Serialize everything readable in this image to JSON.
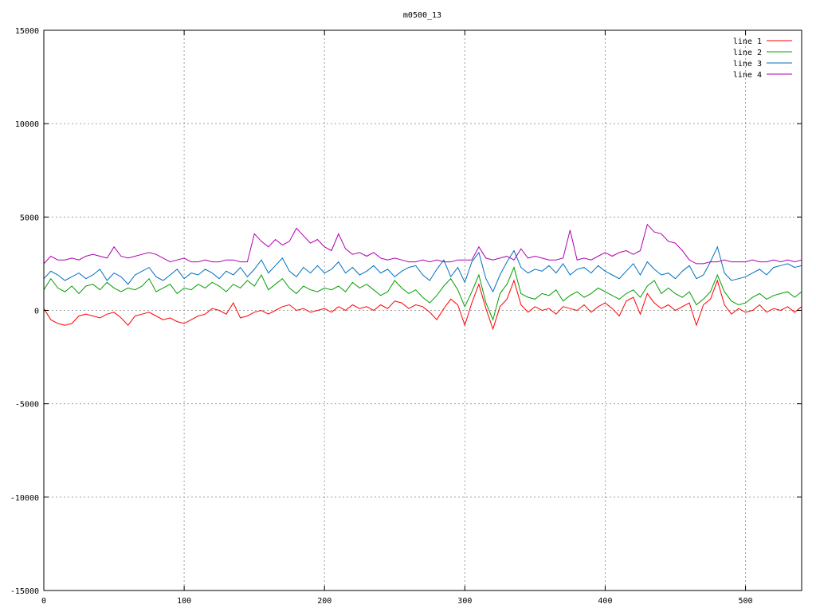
{
  "chart_data": {
    "type": "line",
    "title": "m0500_13",
    "xlabel": "",
    "ylabel": "",
    "xlim": [
      0,
      540
    ],
    "ylim": [
      -15000,
      15000
    ],
    "x_ticks": [
      0,
      100,
      200,
      300,
      400,
      500
    ],
    "x_tick_labels": [
      "0",
      "100",
      "200",
      "300",
      "400",
      "500"
    ],
    "y_ticks": [
      -15000,
      -10000,
      -5000,
      0,
      5000,
      10000,
      15000
    ],
    "y_tick_labels": [
      "-15000",
      "-10000",
      "-5000",
      "0",
      "5000",
      "10000",
      "15000"
    ],
    "grid": true,
    "legend_position": "top-right",
    "x": [
      0,
      5,
      10,
      15,
      20,
      25,
      30,
      35,
      40,
      45,
      50,
      55,
      60,
      65,
      70,
      75,
      80,
      85,
      90,
      95,
      100,
      105,
      110,
      115,
      120,
      125,
      130,
      135,
      140,
      145,
      150,
      155,
      160,
      165,
      170,
      175,
      180,
      185,
      190,
      195,
      200,
      205,
      210,
      215,
      220,
      225,
      230,
      235,
      240,
      245,
      250,
      255,
      260,
      265,
      270,
      275,
      280,
      285,
      290,
      295,
      300,
      305,
      310,
      315,
      320,
      325,
      330,
      335,
      340,
      345,
      350,
      355,
      360,
      365,
      370,
      375,
      380,
      385,
      390,
      395,
      400,
      405,
      410,
      415,
      420,
      425,
      430,
      435,
      440,
      445,
      450,
      455,
      460,
      465,
      470,
      475,
      480,
      485,
      490,
      495,
      500,
      505,
      510,
      515,
      520,
      525,
      530,
      535,
      540
    ],
    "series": [
      {
        "name": "line 1",
        "color": "#ff0000",
        "values": [
          100,
          -500,
          -700,
          -800,
          -700,
          -300,
          -200,
          -300,
          -400,
          -200,
          -100,
          -400,
          -800,
          -300,
          -200,
          -100,
          -300,
          -500,
          -400,
          -600,
          -700,
          -500,
          -300,
          -200,
          100,
          0,
          -200,
          400,
          -400,
          -300,
          -100,
          0,
          -200,
          0,
          200,
          300,
          0,
          100,
          -100,
          0,
          100,
          -100,
          200,
          0,
          300,
          100,
          200,
          0,
          300,
          100,
          500,
          400,
          100,
          300,
          200,
          -100,
          -500,
          100,
          600,
          300,
          -800,
          400,
          1400,
          100,
          -1000,
          200,
          600,
          1600,
          300,
          -100,
          200,
          0,
          100,
          -200,
          200,
          100,
          0,
          300,
          -100,
          200,
          400,
          100,
          -300,
          500,
          700,
          -200,
          900,
          400,
          100,
          300,
          0,
          200,
          400,
          -800,
          300,
          600,
          1600,
          300,
          -200,
          100,
          -100,
          0,
          300,
          -100,
          100,
          0,
          200,
          -100,
          200
        ]
      },
      {
        "name": "line 2",
        "color": "#00a000",
        "values": [
          1100,
          1700,
          1200,
          1000,
          1300,
          900,
          1300,
          1400,
          1100,
          1500,
          1200,
          1000,
          1200,
          1100,
          1300,
          1700,
          1000,
          1200,
          1400,
          900,
          1200,
          1100,
          1400,
          1200,
          1500,
          1300,
          1000,
          1400,
          1200,
          1600,
          1300,
          1900,
          1100,
          1400,
          1700,
          1200,
          900,
          1300,
          1100,
          1000,
          1200,
          1100,
          1300,
          1000,
          1500,
          1200,
          1400,
          1100,
          800,
          1000,
          1600,
          1200,
          900,
          1100,
          700,
          400,
          800,
          1300,
          1700,
          1100,
          200,
          1000,
          1900,
          400,
          -500,
          900,
          1400,
          2300,
          900,
          700,
          600,
          900,
          800,
          1100,
          500,
          800,
          1000,
          700,
          900,
          1200,
          1000,
          800,
          600,
          900,
          1100,
          700,
          1300,
          1600,
          900,
          1200,
          900,
          700,
          1000,
          300,
          600,
          1000,
          1900,
          1000,
          500,
          300,
          400,
          700,
          900,
          600,
          800,
          900,
          1000,
          700,
          1000
        ]
      },
      {
        "name": "line 3",
        "color": "#0070c0",
        "values": [
          1700,
          2100,
          1900,
          1600,
          1800,
          2000,
          1700,
          1900,
          2200,
          1600,
          2000,
          1800,
          1400,
          1900,
          2100,
          2300,
          1800,
          1600,
          1900,
          2200,
          1700,
          2000,
          1900,
          2200,
          2000,
          1700,
          2100,
          1900,
          2300,
          1800,
          2200,
          2700,
          2000,
          2400,
          2800,
          2100,
          1800,
          2300,
          2000,
          2400,
          2000,
          2200,
          2600,
          2000,
          2300,
          1900,
          2100,
          2400,
          2000,
          2200,
          1800,
          2100,
          2300,
          2400,
          1900,
          1600,
          2200,
          2700,
          1800,
          2300,
          1500,
          2600,
          3100,
          1700,
          1000,
          1900,
          2600,
          3200,
          2300,
          2000,
          2200,
          2100,
          2400,
          2000,
          2500,
          1900,
          2200,
          2300,
          2000,
          2400,
          2100,
          1900,
          1700,
          2100,
          2500,
          1900,
          2600,
          2200,
          1900,
          2000,
          1700,
          2100,
          2400,
          1700,
          1900,
          2600,
          3400,
          2000,
          1600,
          1700,
          1800,
          2000,
          2200,
          1900,
          2300,
          2400,
          2500,
          2300,
          2400
        ]
      },
      {
        "name": "line 4",
        "color": "#b000b0",
        "values": [
          2500,
          2900,
          2700,
          2700,
          2800,
          2700,
          2900,
          3000,
          2900,
          2800,
          3400,
          2900,
          2800,
          2900,
          3000,
          3100,
          3000,
          2800,
          2600,
          2700,
          2800,
          2600,
          2600,
          2700,
          2600,
          2600,
          2700,
          2700,
          2600,
          2600,
          4100,
          3700,
          3400,
          3800,
          3500,
          3700,
          4400,
          4000,
          3600,
          3800,
          3400,
          3200,
          4100,
          3300,
          3000,
          3100,
          2900,
          3100,
          2800,
          2700,
          2800,
          2700,
          2600,
          2600,
          2700,
          2600,
          2700,
          2600,
          2600,
          2700,
          2700,
          2700,
          3400,
          2800,
          2700,
          2800,
          2900,
          2700,
          3300,
          2800,
          2900,
          2800,
          2700,
          2700,
          2800,
          4300,
          2700,
          2800,
          2700,
          2900,
          3100,
          2900,
          3100,
          3200,
          3000,
          3200,
          4600,
          4200,
          4100,
          3700,
          3600,
          3200,
          2700,
          2500,
          2500,
          2600,
          2600,
          2700,
          2600,
          2600,
          2600,
          2700,
          2600,
          2600,
          2700,
          2600,
          2700,
          2600,
          2700
        ]
      }
    ]
  }
}
